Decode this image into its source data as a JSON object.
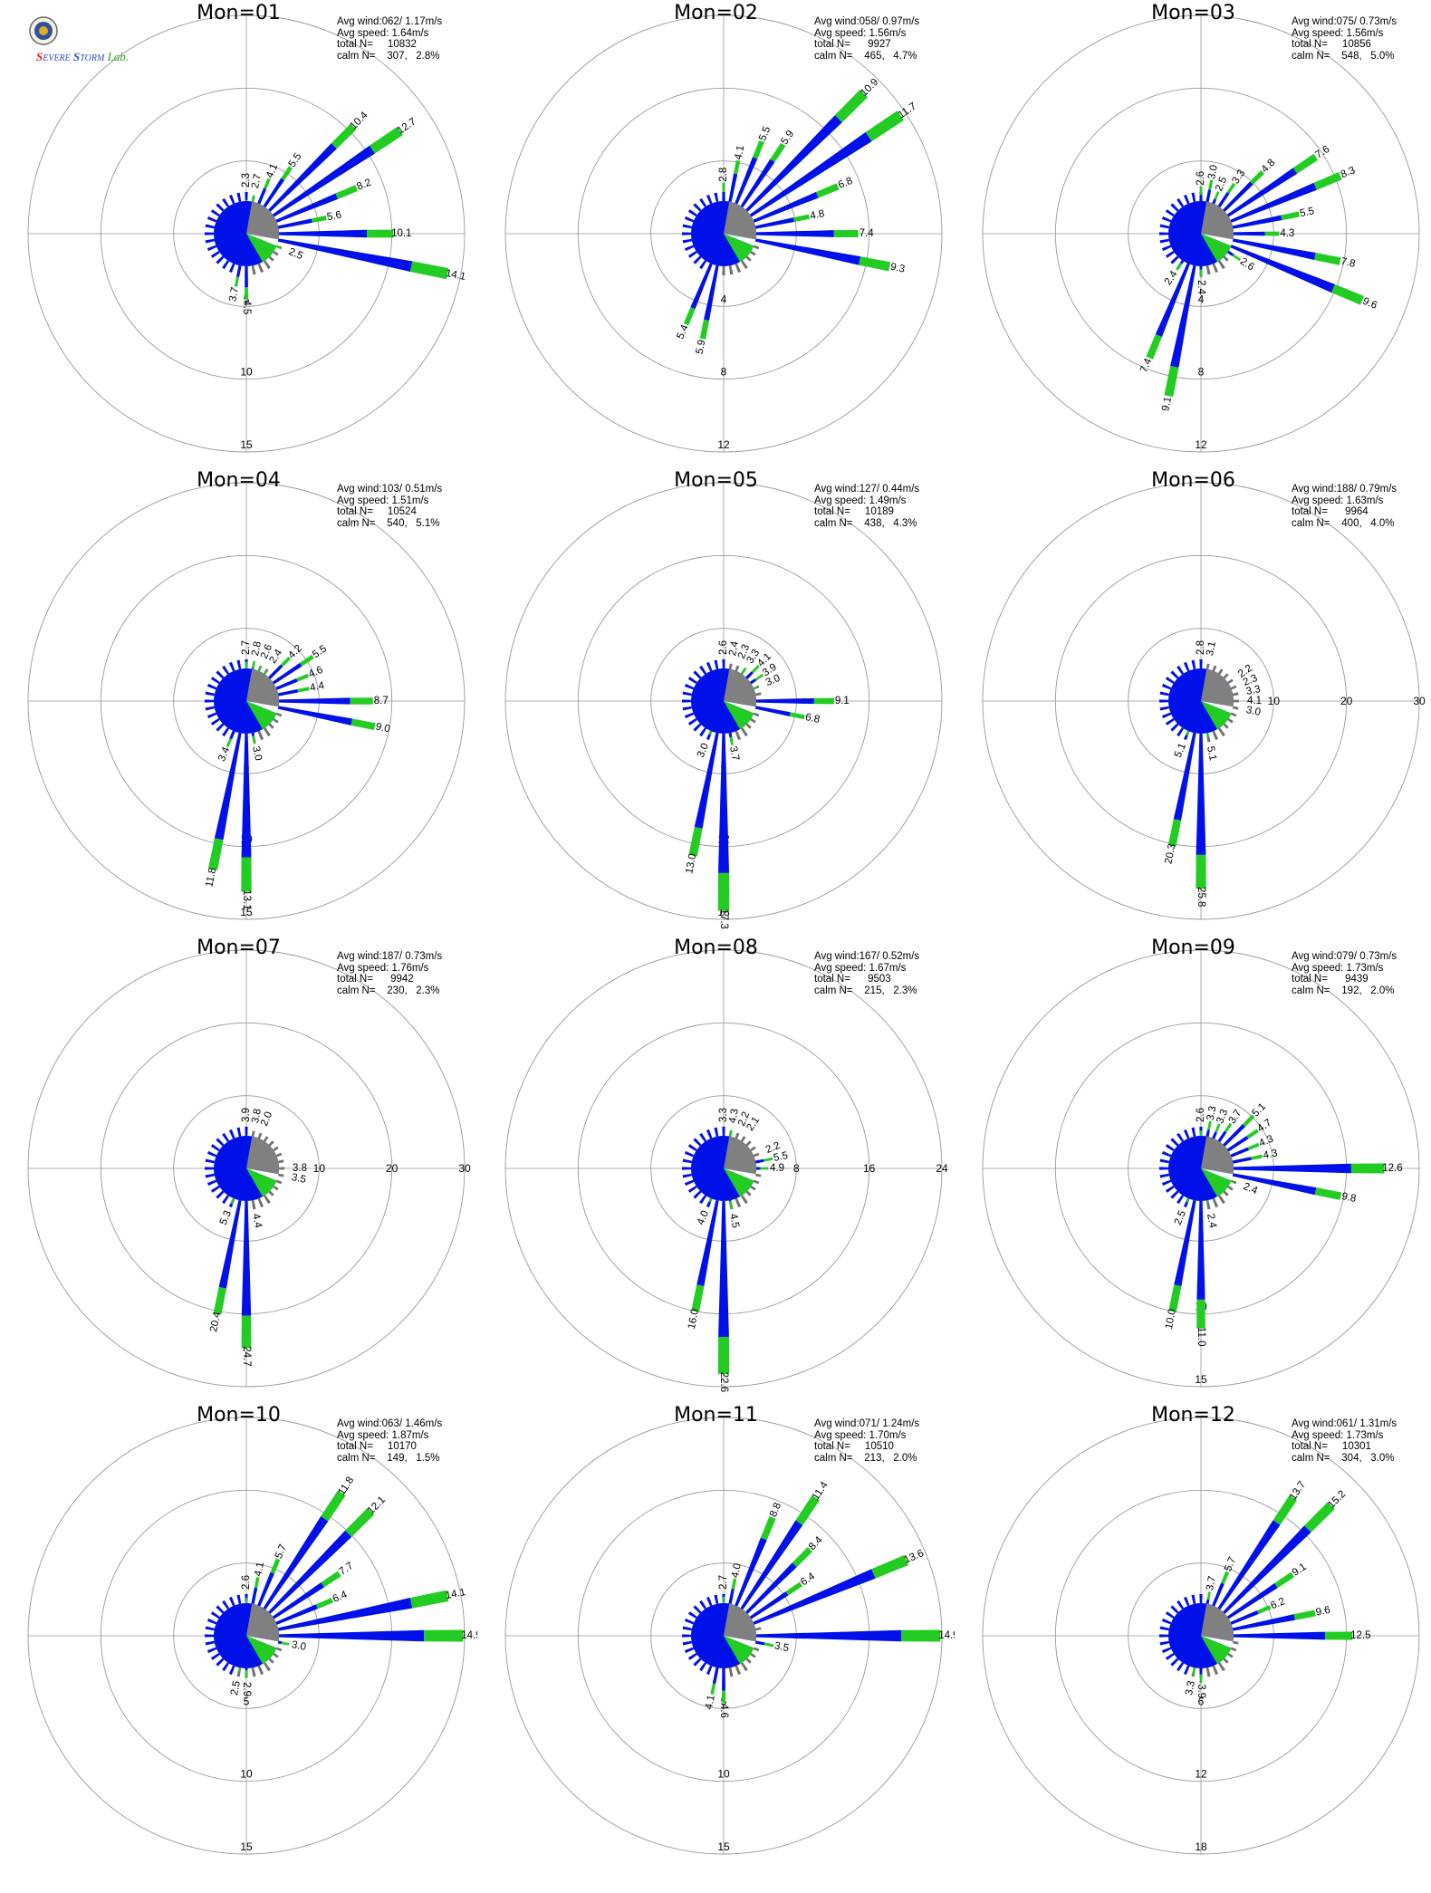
{
  "logo": {
    "name": "Severe Storm Lab.",
    "seal_icon": "university-seal-icon"
  },
  "colors": {
    "calm_sector": "#808080",
    "blue": "#0010e8",
    "green": "#22cc22",
    "orange": "#ff8800",
    "grid": "#999999"
  },
  "chart_data": [
    {
      "type": "polar-bar",
      "title": "Mon=01",
      "avg_wind": "Avg wind:062/ 1.17m/s",
      "avg_speed": "Avg speed: 1.64m/s",
      "total_n": "total N=     10832",
      "calm_n": "calm N=    307,   2.8%",
      "rings": [
        5,
        10,
        15
      ],
      "rmax": 15,
      "petals": [
        {
          "dir": 0,
          "v": 2.3
        },
        {
          "dir": 11.25,
          "v": 2.7
        },
        {
          "dir": 22.5,
          "v": 4.1
        },
        {
          "dir": 33.75,
          "v": 5.5
        },
        {
          "dir": 45,
          "v": 10.4
        },
        {
          "dir": 56.25,
          "v": 12.7
        },
        {
          "dir": 67.5,
          "v": 8.2
        },
        {
          "dir": 78.75,
          "v": 5.6
        },
        {
          "dir": 90,
          "v": 10.1
        },
        {
          "dir": 101.25,
          "v": 14.1
        },
        {
          "dir": 112.5,
          "v": 2.5
        },
        {
          "dir": 180,
          "v": 4.5
        },
        {
          "dir": 191.25,
          "v": 3.7
        }
      ]
    },
    {
      "type": "polar-bar",
      "title": "Mon=02",
      "avg_wind": "Avg wind:058/ 0.97m/s",
      "avg_speed": "Avg speed: 1.56m/s",
      "total_n": "total N=      9927",
      "calm_n": "calm N=    465,   4.7%",
      "rings": [
        4,
        8,
        12
      ],
      "rmax": 12,
      "petals": [
        {
          "dir": 0,
          "v": 2.8
        },
        {
          "dir": 11.25,
          "v": 4.1
        },
        {
          "dir": 22.5,
          "v": 5.5
        },
        {
          "dir": 33.75,
          "v": 5.9
        },
        {
          "dir": 45,
          "v": 10.9
        },
        {
          "dir": 56.25,
          "v": 11.7
        },
        {
          "dir": 67.5,
          "v": 6.8
        },
        {
          "dir": 78.75,
          "v": 4.8
        },
        {
          "dir": 90,
          "v": 7.4
        },
        {
          "dir": 101.25,
          "v": 9.3
        },
        {
          "dir": 191.25,
          "v": 5.9
        },
        {
          "dir": 202.5,
          "v": 5.4
        }
      ]
    },
    {
      "type": "polar-bar",
      "title": "Mon=03",
      "avg_wind": "Avg wind:075/ 0.73m/s",
      "avg_speed": "Avg speed: 1.56m/s",
      "total_n": "total N=     10856",
      "calm_n": "calm N=    548,   5.0%",
      "rings": [
        4,
        8,
        12
      ],
      "rmax": 12,
      "petals": [
        {
          "dir": 0,
          "v": 2.6
        },
        {
          "dir": 11.25,
          "v": 3.0
        },
        {
          "dir": 22.5,
          "v": 2.5
        },
        {
          "dir": 33.75,
          "v": 3.3
        },
        {
          "dir": 45,
          "v": 4.8
        },
        {
          "dir": 56.25,
          "v": 7.6
        },
        {
          "dir": 67.5,
          "v": 8.3
        },
        {
          "dir": 78.75,
          "v": 5.5
        },
        {
          "dir": 90,
          "v": 4.3
        },
        {
          "dir": 101.25,
          "v": 7.8
        },
        {
          "dir": 112.5,
          "v": 9.6
        },
        {
          "dir": 123.75,
          "v": 2.6
        },
        {
          "dir": 180,
          "v": 2.4
        },
        {
          "dir": 191.25,
          "v": 9.1
        },
        {
          "dir": 202.5,
          "v": 7.4
        },
        {
          "dir": 213.75,
          "v": 2.4
        }
      ]
    },
    {
      "type": "polar-bar",
      "title": "Mon=04",
      "avg_wind": "Avg wind:103/ 0.51m/s",
      "avg_speed": "Avg speed: 1.51m/s",
      "total_n": "total N=     10524",
      "calm_n": "calm N=    540,   5.1%",
      "rings": [
        5,
        10,
        15
      ],
      "rmax": 15,
      "petals": [
        {
          "dir": 0,
          "v": 2.7
        },
        {
          "dir": 11.25,
          "v": 2.8
        },
        {
          "dir": 22.5,
          "v": 2.6
        },
        {
          "dir": 33.75,
          "v": 2.4
        },
        {
          "dir": 45,
          "v": 4.2
        },
        {
          "dir": 56.25,
          "v": 5.5
        },
        {
          "dir": 67.5,
          "v": 4.6
        },
        {
          "dir": 78.75,
          "v": 4.4
        },
        {
          "dir": 90,
          "v": 8.7
        },
        {
          "dir": 101.25,
          "v": 9.0
        },
        {
          "dir": 168.75,
          "v": 3.0
        },
        {
          "dir": 180,
          "v": 13.1
        },
        {
          "dir": 191.25,
          "v": 11.8
        },
        {
          "dir": 202.5,
          "v": 3.4
        }
      ]
    },
    {
      "type": "polar-bar",
      "title": "Mon=05",
      "avg_wind": "Avg wind:127/ 0.44m/s",
      "avg_speed": "Avg speed: 1.49m/s",
      "total_n": "total N=     10189",
      "calm_n": "calm N=    438,   4.3%",
      "rings": [
        6,
        12,
        18
      ],
      "rmax": 18,
      "petals": [
        {
          "dir": 0,
          "v": 2.6
        },
        {
          "dir": 11.25,
          "v": 2.4
        },
        {
          "dir": 22.5,
          "v": 2.3
        },
        {
          "dir": 33.75,
          "v": 3.3
        },
        {
          "dir": 45,
          "v": 4.1
        },
        {
          "dir": 56.25,
          "v": 3.9
        },
        {
          "dir": 67.5,
          "v": 3.0
        },
        {
          "dir": 90,
          "v": 9.1
        },
        {
          "dir": 101.25,
          "v": 6.8
        },
        {
          "dir": 168.75,
          "v": 3.7
        },
        {
          "dir": 180,
          "v": 17.3
        },
        {
          "dir": 191.25,
          "v": 13.0
        },
        {
          "dir": 202.5,
          "v": 3.0
        }
      ]
    },
    {
      "type": "polar-bar",
      "title": "Mon=06",
      "avg_wind": "Avg wind:188/ 0.79m/s",
      "avg_speed": "Avg speed: 1.63m/s",
      "total_n": "total N=      9964",
      "calm_n": "calm N=    400,   4.0%",
      "rings": [
        10,
        20,
        30
      ],
      "rmax": 30,
      "petals": [
        {
          "dir": 0,
          "v": 2.8
        },
        {
          "dir": 11.25,
          "v": 3.1
        },
        {
          "dir": 56.25,
          "v": 2.2
        },
        {
          "dir": 67.5,
          "v": 2.3
        },
        {
          "dir": 78.75,
          "v": 3.3
        },
        {
          "dir": 90,
          "v": 4.1
        },
        {
          "dir": 101.25,
          "v": 3.0
        },
        {
          "dir": 168.75,
          "v": 5.1
        },
        {
          "dir": 180,
          "v": 25.8
        },
        {
          "dir": 191.25,
          "v": 20.3
        },
        {
          "dir": 202.5,
          "v": 5.1
        }
      ]
    },
    {
      "type": "polar-bar",
      "title": "Mon=07",
      "avg_wind": "Avg wind:187/ 0.73m/s",
      "avg_speed": "Avg speed: 1.76m/s",
      "total_n": "total N=      9942",
      "calm_n": "calm N=    230,   2.3%",
      "rings": [
        10,
        20,
        30
      ],
      "rmax": 30,
      "petals": [
        {
          "dir": 0,
          "v": 3.9
        },
        {
          "dir": 11.25,
          "v": 3.8
        },
        {
          "dir": 22.5,
          "v": 2.0
        },
        {
          "dir": 90,
          "v": 3.8
        },
        {
          "dir": 101.25,
          "v": 3.5
        },
        {
          "dir": 168.75,
          "v": 4.4
        },
        {
          "dir": 180,
          "v": 24.7
        },
        {
          "dir": 191.25,
          "v": 20.4
        },
        {
          "dir": 202.5,
          "v": 5.3
        }
      ]
    },
    {
      "type": "polar-bar",
      "title": "Mon=08",
      "avg_wind": "Avg wind:167/ 0.52m/s",
      "avg_speed": "Avg speed: 1.67m/s",
      "total_n": "total N=      9503",
      "calm_n": "calm N=    215,   2.3%",
      "rings": [
        8,
        16,
        24
      ],
      "rmax": 24,
      "petals": [
        {
          "dir": 0,
          "v": 3.3
        },
        {
          "dir": 11.25,
          "v": 4.3
        },
        {
          "dir": 22.5,
          "v": 2.2
        },
        {
          "dir": 33.75,
          "v": 2.1
        },
        {
          "dir": 67.5,
          "v": 2.2
        },
        {
          "dir": 78.75,
          "v": 5.5
        },
        {
          "dir": 90,
          "v": 4.9
        },
        {
          "dir": 168.75,
          "v": 4.5
        },
        {
          "dir": 180,
          "v": 22.6
        },
        {
          "dir": 191.25,
          "v": 16.0
        },
        {
          "dir": 202.5,
          "v": 4.0
        }
      ]
    },
    {
      "type": "polar-bar",
      "title": "Mon=09",
      "avg_wind": "Avg wind:079/ 0.73m/s",
      "avg_speed": "Avg speed: 1.73m/s",
      "total_n": "total N=      9439",
      "calm_n": "calm N=    192,   2.0%",
      "rings": [
        5,
        10,
        15
      ],
      "rmax": 15,
      "petals": [
        {
          "dir": 0,
          "v": 2.6
        },
        {
          "dir": 11.25,
          "v": 3.3
        },
        {
          "dir": 22.5,
          "v": 3.3
        },
        {
          "dir": 33.75,
          "v": 3.7
        },
        {
          "dir": 45,
          "v": 5.1
        },
        {
          "dir": 56.25,
          "v": 4.7
        },
        {
          "dir": 67.5,
          "v": 4.3
        },
        {
          "dir": 78.75,
          "v": 4.3
        },
        {
          "dir": 90,
          "v": 12.6
        },
        {
          "dir": 101.25,
          "v": 9.8
        },
        {
          "dir": 112.5,
          "v": 2.4
        },
        {
          "dir": 168.75,
          "v": 2.4
        },
        {
          "dir": 180,
          "v": 11.0
        },
        {
          "dir": 191.25,
          "v": 10.0
        },
        {
          "dir": 202.5,
          "v": 2.5
        }
      ]
    },
    {
      "type": "polar-bar",
      "title": "Mon=10",
      "avg_wind": "Avg wind:063/ 1.46m/s",
      "avg_speed": "Avg speed: 1.87m/s",
      "total_n": "total N=     10170",
      "calm_n": "calm N=    149,   1.5%",
      "rings": [
        5,
        10,
        15
      ],
      "rmax": 15,
      "petals": [
        {
          "dir": 0,
          "v": 2.6
        },
        {
          "dir": 11.25,
          "v": 4.1
        },
        {
          "dir": 22.5,
          "v": 5.7
        },
        {
          "dir": 33.75,
          "v": 11.8
        },
        {
          "dir": 45,
          "v": 12.1
        },
        {
          "dir": 56.25,
          "v": 7.7
        },
        {
          "dir": 67.5,
          "v": 6.4
        },
        {
          "dir": 78.75,
          "v": 14.1
        },
        {
          "dir": 90,
          "v": 14.9
        },
        {
          "dir": 101.25,
          "v": 3.0
        },
        {
          "dir": 180,
          "v": 2.9
        },
        {
          "dir": 191.25,
          "v": 2.5
        }
      ]
    },
    {
      "type": "polar-bar",
      "title": "Mon=11",
      "avg_wind": "Avg wind:071/ 1.24m/s",
      "avg_speed": "Avg speed: 1.70m/s",
      "total_n": "total N=     10510",
      "calm_n": "calm N=    213,   2.0%",
      "rings": [
        5,
        10,
        15
      ],
      "rmax": 15,
      "petals": [
        {
          "dir": 0,
          "v": 2.7
        },
        {
          "dir": 11.25,
          "v": 4.0
        },
        {
          "dir": 22.5,
          "v": 8.8
        },
        {
          "dir": 33.75,
          "v": 11.4
        },
        {
          "dir": 45,
          "v": 8.4
        },
        {
          "dir": 56.25,
          "v": 6.4
        },
        {
          "dir": 67.5,
          "v": 13.6
        },
        {
          "dir": 90,
          "v": 14.9
        },
        {
          "dir": 101.25,
          "v": 3.5
        },
        {
          "dir": 180,
          "v": 4.6
        },
        {
          "dir": 191.25,
          "v": 4.1
        }
      ]
    },
    {
      "type": "polar-bar",
      "title": "Mon=12",
      "avg_wind": "Avg wind:061/ 1.31m/s",
      "avg_speed": "Avg speed: 1.73m/s",
      "total_n": "total N=     10301",
      "calm_n": "calm N=    304,   3.0%",
      "rings": [
        6,
        12,
        18
      ],
      "rmax": 18,
      "petals": [
        {
          "dir": 11.25,
          "v": 3.7
        },
        {
          "dir": 22.5,
          "v": 5.7
        },
        {
          "dir": 33.75,
          "v": 13.7
        },
        {
          "dir": 45,
          "v": 15.2
        },
        {
          "dir": 56.25,
          "v": 9.1
        },
        {
          "dir": 67.5,
          "v": 6.2
        },
        {
          "dir": 78.75,
          "v": 9.6
        },
        {
          "dir": 90,
          "v": 12.5
        },
        {
          "dir": 180,
          "v": 3.9
        },
        {
          "dir": 191.25,
          "v": 3.3
        }
      ]
    }
  ]
}
